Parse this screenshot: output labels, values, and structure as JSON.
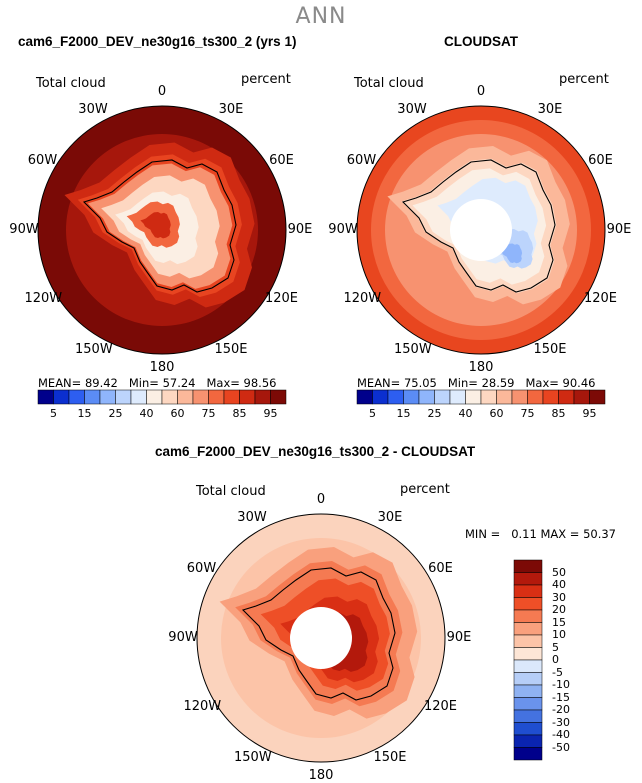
{
  "main_title": "ANN",
  "panels": [
    {
      "title": "cam6_F2000_DEV_ne30g16_ts300_2 (yrs 1)",
      "variable": "Total cloud",
      "units": "percent",
      "stats": {
        "mean_label": "MEAN=",
        "mean": "89.42",
        "min_label": "Min=",
        "min": "57.24",
        "max_label": "Max=",
        "max": "98.56"
      },
      "colorbar": {
        "levels": [
          "5",
          "15",
          "25",
          "40",
          "60",
          "75",
          "85",
          "95"
        ],
        "colors": [
          "#00008b",
          "#0b2fcf",
          "#2d5ef0",
          "#5b8cf5",
          "#8fb5fb",
          "#bcd4fc",
          "#deebfd",
          "#fbefe4",
          "#fdd7c1",
          "#fbb89a",
          "#f79270",
          "#f2673f",
          "#e84420",
          "#cf2a12",
          "#a6170c",
          "#7c0a06"
        ]
      }
    },
    {
      "title": "CLOUDSAT",
      "variable": "Total cloud",
      "units": "percent",
      "stats": {
        "mean_label": "MEAN=",
        "mean": "75.05",
        "min_label": "Min=",
        "min": "28.59",
        "max_label": "Max=",
        "max": "90.46"
      },
      "colorbar": {
        "levels": [
          "5",
          "15",
          "25",
          "40",
          "60",
          "75",
          "85",
          "95"
        ],
        "colors": [
          "#00008b",
          "#0b2fcf",
          "#2d5ef0",
          "#5b8cf5",
          "#8fb5fb",
          "#bcd4fc",
          "#deebfd",
          "#fbefe4",
          "#fdd7c1",
          "#fbb89a",
          "#f79270",
          "#f2673f",
          "#e84420",
          "#cf2a12",
          "#a6170c",
          "#7c0a06"
        ]
      }
    },
    {
      "title": "cam6_F2000_DEV_ne30g16_ts300_2 - CLOUDSAT",
      "variable": "Total cloud",
      "units": "percent",
      "stats": {
        "min_label": "MIN =",
        "min": "0.11",
        "max_label": "MAX =",
        "max": "50.37"
      },
      "colorbar": {
        "levels": [
          "50",
          "40",
          "30",
          "20",
          "15",
          "10",
          "5",
          "0",
          "-5",
          "-10",
          "-15",
          "-20",
          "-30",
          "-40",
          "-50"
        ],
        "colors": [
          "#7c0a06",
          "#b3190c",
          "#d92f14",
          "#ee4f27",
          "#f57a52",
          "#f9a07d",
          "#fcc4a8",
          "#fde6d6",
          "#dbe8fb",
          "#b6cef7",
          "#8fb2f2",
          "#6a93ec",
          "#4472e0",
          "#1f4ed0",
          "#0a24b0",
          "#00008b"
        ]
      }
    }
  ],
  "longitude_labels": [
    "0",
    "30E",
    "60E",
    "90E",
    "120E",
    "150E",
    "180",
    "150W",
    "120W",
    "90W",
    "60W",
    "30W"
  ],
  "colors": {
    "model_ocean": "#7a0a06",
    "obs_ocean": "#e8461f",
    "diff_ocean": "#fbd3bd",
    "coastline": "#000000"
  }
}
